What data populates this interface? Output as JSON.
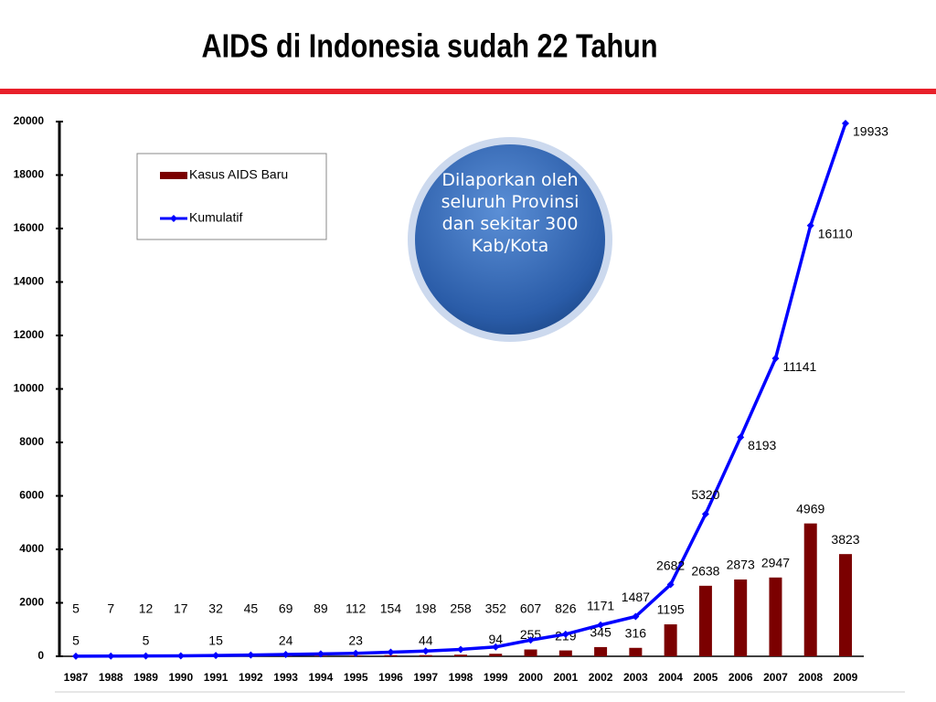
{
  "chart_data": {
    "type": "bar-line",
    "title": "AIDS di Indonesia sudah 22 Tahun",
    "annotation": "Dilaporkan oleh seluruh Provinsi dan sekitar 300 Kab/Kota",
    "categories": [
      "1987",
      "1988",
      "1989",
      "1990",
      "1991",
      "1992",
      "1993",
      "1994",
      "1995",
      "1996",
      "1997",
      "1998",
      "1999",
      "2000",
      "2001",
      "2002",
      "2003",
      "2004",
      "2005",
      "2006",
      "2007",
      "2008",
      "2009"
    ],
    "series": [
      {
        "name": "Kasus AIDS Baru",
        "type": "bar",
        "color": "#7b0000",
        "values": [
          5,
          2,
          5,
          5,
          15,
          13,
          24,
          20,
          23,
          42,
          44,
          60,
          94,
          255,
          219,
          345,
          316,
          1195,
          2638,
          2873,
          2947,
          4969,
          3823
        ],
        "value_labels": [
          "5",
          null,
          "5",
          null,
          "15",
          null,
          "24",
          null,
          "23",
          null,
          "44",
          null,
          "94",
          "255",
          "219",
          "345",
          "316",
          "1195",
          "2638",
          "2873",
          "2947",
          "4969",
          "3823"
        ]
      },
      {
        "name": "Kumulatif",
        "type": "line",
        "color": "#0000ff",
        "values": [
          5,
          7,
          12,
          17,
          32,
          45,
          69,
          89,
          112,
          154,
          198,
          258,
          352,
          607,
          826,
          1171,
          1487,
          2682,
          5320,
          8193,
          11141,
          16110,
          19933
        ]
      }
    ],
    "ylim": [
      0,
      20000
    ],
    "yticks": [
      0,
      2000,
      4000,
      6000,
      8000,
      10000,
      12000,
      14000,
      16000,
      18000,
      20000
    ],
    "legend": "top-left"
  }
}
